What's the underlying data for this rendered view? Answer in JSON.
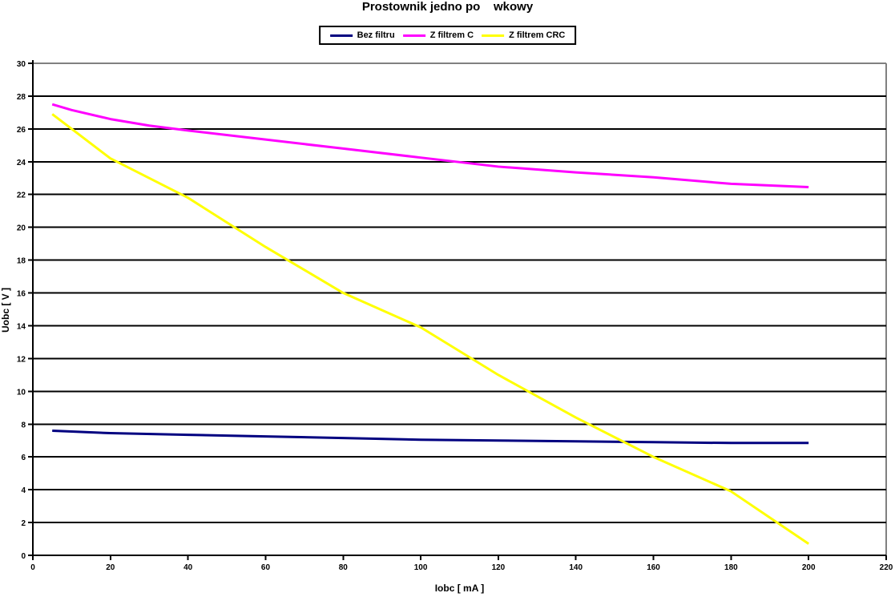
{
  "title": "Prostownik jedno po    wkowy",
  "legend": {
    "items": [
      {
        "label": "Bez filtru",
        "color": "#000080"
      },
      {
        "label": "Z filtrem C",
        "color": "#FF00FF"
      },
      {
        "label": "Z filtrem CRC",
        "color": "#FFFF00"
      }
    ]
  },
  "chart_data": {
    "type": "line",
    "title": "Prostownik jedno po    wkowy",
    "xlabel": "Iobc [ mA ]",
    "ylabel": "Uobc [ V ]",
    "xlim": [
      0,
      220
    ],
    "ylim": [
      0,
      30
    ],
    "x_ticks": [
      0,
      20,
      40,
      60,
      80,
      100,
      120,
      140,
      160,
      180,
      200,
      220
    ],
    "y_ticks": [
      0,
      2,
      4,
      6,
      8,
      10,
      12,
      14,
      16,
      18,
      20,
      22,
      24,
      26,
      28,
      30
    ],
    "grid": "horizontal",
    "legend_position": "top",
    "gridline_color": "#000000",
    "border_color": "#808080",
    "series": [
      {
        "name": "Bez filtru",
        "color": "#000080",
        "points": [
          [
            5,
            7.6
          ],
          [
            10,
            7.55
          ],
          [
            20,
            7.45
          ],
          [
            40,
            7.35
          ],
          [
            60,
            7.25
          ],
          [
            80,
            7.15
          ],
          [
            100,
            7.05
          ],
          [
            120,
            7.0
          ],
          [
            140,
            6.95
          ],
          [
            160,
            6.9
          ],
          [
            180,
            6.85
          ],
          [
            200,
            6.85
          ]
        ]
      },
      {
        "name": "Z filtrem C",
        "color": "#FF00FF",
        "points": [
          [
            5,
            27.5
          ],
          [
            10,
            27.15
          ],
          [
            20,
            26.6
          ],
          [
            30,
            26.2
          ],
          [
            40,
            25.9
          ],
          [
            60,
            25.35
          ],
          [
            80,
            24.8
          ],
          [
            100,
            24.25
          ],
          [
            120,
            23.7
          ],
          [
            140,
            23.35
          ],
          [
            160,
            23.05
          ],
          [
            180,
            22.65
          ],
          [
            200,
            22.45
          ]
        ]
      },
      {
        "name": "Z filtrem CRC",
        "color": "#FFFF00",
        "points": [
          [
            5,
            26.9
          ],
          [
            10,
            26.0
          ],
          [
            20,
            24.2
          ],
          [
            40,
            21.8
          ],
          [
            60,
            18.8
          ],
          [
            80,
            16.0
          ],
          [
            100,
            13.9
          ],
          [
            120,
            11.0
          ],
          [
            140,
            8.4
          ],
          [
            160,
            6.0
          ],
          [
            180,
            3.9
          ],
          [
            200,
            0.7
          ]
        ]
      }
    ]
  }
}
